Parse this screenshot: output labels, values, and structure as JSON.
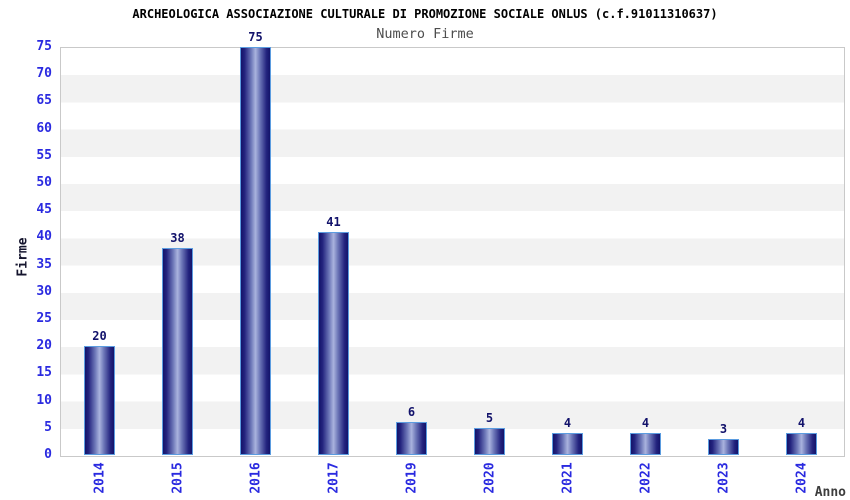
{
  "chart_data": {
    "type": "bar",
    "title": "ARCHEOLOGICA ASSOCIAZIONE CULTURALE DI PROMOZIONE SOCIALE ONLUS (c.f.91011310637)",
    "subtitle": "Numero Firme",
    "xlabel": "Anno",
    "ylabel": "Firme",
    "categories": [
      "2014",
      "2015",
      "2016",
      "2017",
      "2019",
      "2020",
      "2021",
      "2022",
      "2023",
      "2024"
    ],
    "values": [
      20,
      38,
      75,
      41,
      6,
      5,
      4,
      4,
      3,
      4
    ],
    "ylim": [
      0,
      75
    ],
    "ytick_step": 5,
    "yticks": [
      0,
      5,
      10,
      15,
      20,
      25,
      30,
      35,
      40,
      45,
      50,
      55,
      60,
      65,
      70,
      75
    ],
    "legend": "none",
    "grid": "alternating-horizontal-bands",
    "bar_value_labels": true,
    "colors": {
      "title": "#000000",
      "subtitle": "#4d4d4d",
      "axis_tick_label": "#2a2ae0",
      "value_label": "#12126b",
      "axis_title": "#15152e",
      "xlabel_color": "#3d3d3d",
      "bar_edge": "#14146a",
      "bar_center": "#aab3de",
      "bar_outline": "#5b9ce0",
      "band_white": "#ffffff",
      "band_gray": "#f2f2f2",
      "plot_border": "#c9c9c9"
    }
  }
}
